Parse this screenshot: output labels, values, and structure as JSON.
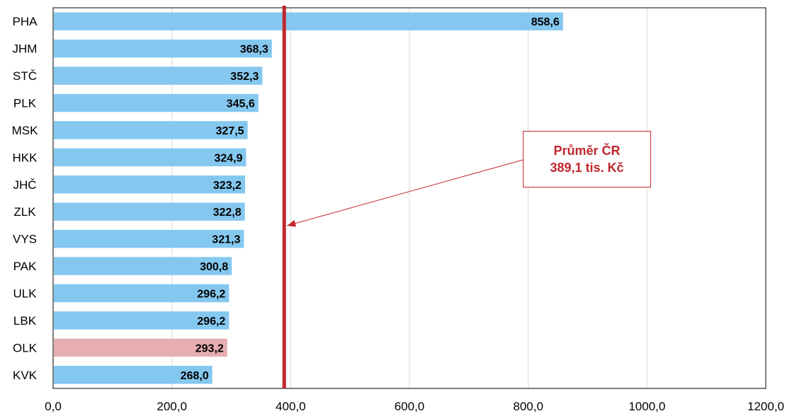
{
  "chart_data": {
    "type": "bar",
    "orientation": "horizontal",
    "categories": [
      "PHA",
      "JHM",
      "STČ",
      "PLK",
      "MSK",
      "HKK",
      "JHČ",
      "ZLK",
      "VYS",
      "PAK",
      "ULK",
      "LBK",
      "OLK",
      "KVK"
    ],
    "values": [
      858.6,
      368.3,
      352.3,
      345.6,
      327.5,
      324.9,
      323.2,
      322.8,
      321.3,
      300.8,
      296.2,
      296.2,
      293.2,
      268.0
    ],
    "value_labels": [
      "858,6",
      "368,3",
      "352,3",
      "345,6",
      "327,5",
      "324,9",
      "323,2",
      "322,8",
      "321,3",
      "300,8",
      "296,2",
      "296,2",
      "293,2",
      "268,0"
    ],
    "highlighted_category": "OLK",
    "xlim": [
      0,
      1200
    ],
    "x_ticks": [
      0,
      200,
      400,
      600,
      800,
      1000,
      1200
    ],
    "x_tick_labels": [
      "0,0",
      "200,0",
      "400,0",
      "600,0",
      "800,0",
      "1000,0",
      "1200,0"
    ],
    "grid": "vertical",
    "reference_line": {
      "value": 389.1
    },
    "annotation": {
      "line1": "Průměr ČR",
      "line2": "389,1 tis. Kč"
    },
    "colors": {
      "bar": "#85c8ef",
      "highlight": "#e6aeb0",
      "reference": "#c0272d",
      "grid": "#d9d9d9"
    }
  }
}
